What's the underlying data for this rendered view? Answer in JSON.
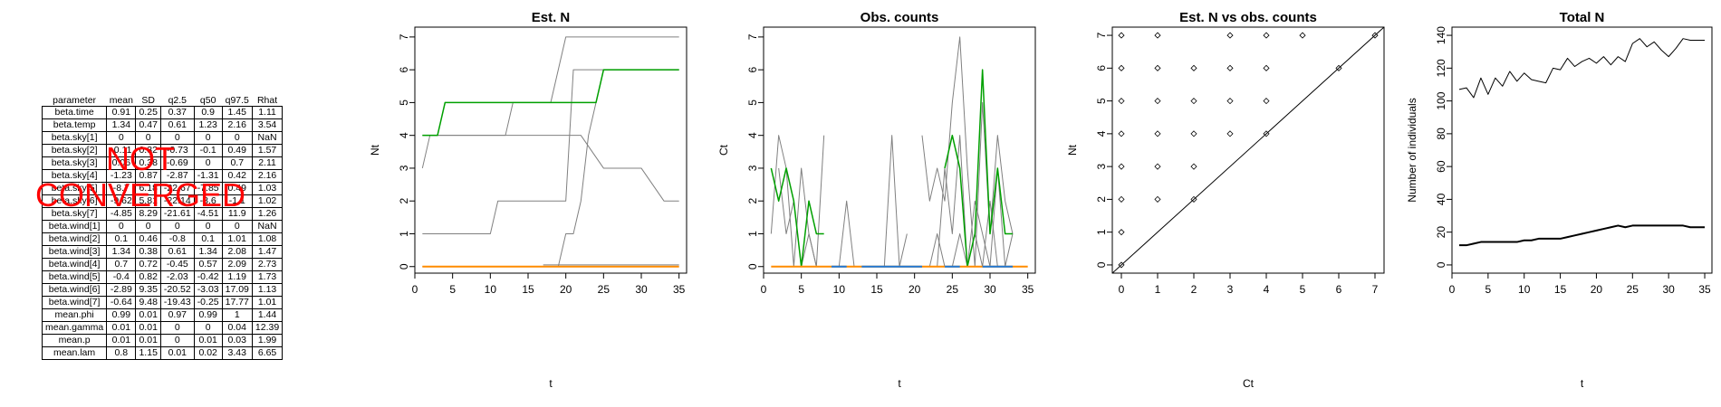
{
  "table": {
    "headers": [
      "parameter",
      "mean",
      "SD",
      "q2.5",
      "q50",
      "q97.5",
      "Rhat"
    ],
    "rows": [
      [
        "beta.time",
        "0.91",
        "0.25",
        "0.37",
        "0.9",
        "1.45",
        "1.11"
      ],
      [
        "beta.temp",
        "1.34",
        "0.47",
        "0.61",
        "1.23",
        "2.16",
        "3.54"
      ],
      [
        "beta.sky[1]",
        "0",
        "0",
        "0",
        "0",
        "0",
        "NaN"
      ],
      [
        "beta.sky[2]",
        "-0.11",
        "0.32",
        "-0.73",
        "-0.1",
        "0.49",
        "1.57"
      ],
      [
        "beta.sky[3]",
        "0.06",
        "0.38",
        "-0.69",
        "0",
        "0.7",
        "2.11"
      ],
      [
        "beta.sky[4]",
        "-1.23",
        "0.87",
        "-2.87",
        "-1.31",
        "0.42",
        "2.16"
      ],
      [
        "beta.sky[5]",
        "-8.7",
        "6.18",
        "-22.67",
        "-7.85",
        "0.49",
        "1.03"
      ],
      [
        "beta.sky[6]",
        "-9.62",
        "5.81",
        "-22.14",
        "-8.6",
        "-1.1",
        "1.02"
      ],
      [
        "beta.sky[7]",
        "-4.85",
        "8.29",
        "-21.61",
        "-4.51",
        "11.9",
        "1.26"
      ],
      [
        "beta.wind[1]",
        "0",
        "0",
        "0",
        "0",
        "0",
        "NaN"
      ],
      [
        "beta.wind[2]",
        "0.1",
        "0.46",
        "-0.8",
        "0.1",
        "1.01",
        "1.08"
      ],
      [
        "beta.wind[3]",
        "1.34",
        "0.38",
        "0.61",
        "1.34",
        "2.08",
        "1.47"
      ],
      [
        "beta.wind[4]",
        "0.7",
        "0.72",
        "-0.45",
        "0.57",
        "2.09",
        "2.73"
      ],
      [
        "beta.wind[5]",
        "-0.4",
        "0.82",
        "-2.03",
        "-0.42",
        "1.19",
        "1.73"
      ],
      [
        "beta.wind[6]",
        "-2.89",
        "9.35",
        "-20.52",
        "-3.03",
        "17.09",
        "1.13"
      ],
      [
        "beta.wind[7]",
        "-0.64",
        "9.48",
        "-19.43",
        "-0.25",
        "17.77",
        "1.01"
      ],
      [
        "mean.phi",
        "0.99",
        "0.01",
        "0.97",
        "0.99",
        "1",
        "1.44"
      ],
      [
        "mean.gamma",
        "0.01",
        "0.01",
        "0",
        "0",
        "0.04",
        "12.39"
      ],
      [
        "mean.p",
        "0.01",
        "0.01",
        "0",
        "0.01",
        "0.03",
        "1.99"
      ],
      [
        "mean.lam",
        "0.8",
        "1.15",
        "0.01",
        "0.02",
        "3.43",
        "6.65"
      ]
    ]
  },
  "stamp": {
    "line1": "NOT",
    "line2": "CONVERGED",
    "color": "#ff0000"
  },
  "chart_data": [
    {
      "type": "line",
      "title": "Est. N",
      "xlabel": "t",
      "ylabel": "Nt",
      "xlim": [
        0,
        36
      ],
      "ylim": [
        -0.2,
        7.3
      ],
      "xticks": [
        0,
        5,
        10,
        15,
        20,
        25,
        30,
        35
      ],
      "yticks": [
        0,
        1,
        2,
        3,
        4,
        5,
        6,
        7
      ],
      "series": [
        {
          "color": "#808080",
          "width": 1,
          "x": [
            1,
            2,
            10,
            12,
            13,
            18,
            19,
            20,
            22,
            35
          ],
          "y": [
            3,
            4,
            4,
            4,
            5,
            5,
            6,
            7,
            7,
            7
          ]
        },
        {
          "color": "#808080",
          "width": 1,
          "x": [
            1,
            10,
            11,
            20,
            21,
            35
          ],
          "y": [
            1,
            1,
            2,
            2,
            6,
            6
          ]
        },
        {
          "color": "#808080",
          "width": 1,
          "x": [
            1,
            15,
            17,
            18,
            19,
            20,
            21,
            22,
            25,
            30,
            33,
            35
          ],
          "y": [
            4,
            4,
            4,
            4,
            4,
            4,
            4,
            4,
            3,
            3,
            2,
            2
          ]
        },
        {
          "color": "#808080",
          "width": 1,
          "x": [
            1,
            17,
            19,
            20,
            21,
            22,
            23,
            25,
            26,
            35
          ],
          "y": [
            0,
            0,
            0,
            1,
            1,
            2,
            4,
            6,
            6,
            6
          ]
        },
        {
          "color": "#808080",
          "width": 1,
          "x": [
            17,
            35
          ],
          "y": [
            0.05,
            0.05
          ]
        },
        {
          "color": "#00a000",
          "width": 1.5,
          "x": [
            1,
            3,
            4,
            24,
            25,
            35
          ],
          "y": [
            4,
            4,
            5,
            5,
            6,
            6
          ]
        },
        {
          "color": "#ff8c00",
          "width": 2,
          "x": [
            1,
            35
          ],
          "y": [
            0,
            0
          ]
        }
      ]
    },
    {
      "type": "line",
      "title": "Obs. counts",
      "xlabel": "t",
      "ylabel": "Ct",
      "xlim": [
        0,
        36
      ],
      "ylim": [
        -0.2,
        7.3
      ],
      "xticks": [
        0,
        5,
        10,
        15,
        20,
        25,
        30,
        35
      ],
      "yticks": [
        0,
        1,
        2,
        3,
        4,
        5,
        6,
        7
      ],
      "series": [
        {
          "color": "#808080",
          "width": 1,
          "x": [
            1,
            2,
            3,
            4,
            5,
            6,
            7,
            8
          ],
          "y": [
            1,
            4,
            3,
            0,
            3,
            1,
            0,
            4
          ]
        },
        {
          "color": "#808080",
          "width": 1,
          "x": [
            2,
            3,
            4,
            5,
            6,
            7
          ],
          "y": [
            3,
            1,
            2,
            0,
            1,
            0
          ]
        },
        {
          "color": "#808080",
          "width": 1,
          "x": [
            10,
            11,
            12
          ],
          "y": [
            0,
            2,
            0
          ]
        },
        {
          "color": "#808080",
          "width": 1,
          "x": [
            15,
            16,
            17,
            18,
            19
          ],
          "y": [
            0,
            0,
            4,
            0,
            1
          ]
        },
        {
          "color": "#808080",
          "width": 1,
          "x": [
            21,
            22,
            23,
            24,
            25,
            26,
            27,
            28,
            29,
            30,
            31,
            32,
            33
          ],
          "y": [
            4,
            2,
            3,
            2,
            5,
            7,
            3,
            0,
            5,
            1,
            4,
            2,
            1
          ]
        },
        {
          "color": "#808080",
          "width": 1,
          "x": [
            22,
            23,
            24,
            25,
            26,
            27,
            28,
            29,
            30,
            31,
            32,
            33
          ],
          "y": [
            0,
            1,
            0,
            0,
            1,
            0,
            2,
            1,
            0,
            3,
            0,
            1
          ]
        },
        {
          "color": "#808080",
          "width": 1,
          "x": [
            23,
            24,
            25,
            26,
            27,
            28,
            29,
            30,
            31
          ],
          "y": [
            0,
            3,
            1,
            4,
            0,
            1,
            0,
            2,
            0
          ]
        },
        {
          "color": "#00a000",
          "width": 1.5,
          "x": [
            1,
            2,
            3,
            4,
            5,
            6,
            7,
            8
          ],
          "y": [
            3,
            2,
            3,
            2,
            0,
            2,
            1,
            1
          ]
        },
        {
          "color": "#00a000",
          "width": 1.5,
          "x": [
            24,
            25,
            26,
            27,
            28,
            29,
            30,
            31,
            32,
            33
          ],
          "y": [
            3,
            4,
            3,
            0,
            1,
            6,
            1,
            3,
            1,
            1
          ]
        },
        {
          "color": "#ff8c00",
          "width": 2,
          "x": [
            1,
            35
          ],
          "y": [
            0,
            0
          ]
        },
        {
          "color": "#1f77d4",
          "width": 2,
          "x": [
            9,
            11
          ],
          "y": [
            0,
            0
          ]
        },
        {
          "color": "#1f77d4",
          "width": 2,
          "x": [
            13,
            21
          ],
          "y": [
            0,
            0
          ]
        },
        {
          "color": "#1f77d4",
          "width": 2,
          "x": [
            24,
            26
          ],
          "y": [
            0,
            0
          ]
        },
        {
          "color": "#1f77d4",
          "width": 2,
          "x": [
            29,
            33
          ],
          "y": [
            0,
            0
          ]
        }
      ]
    },
    {
      "type": "scatter",
      "title": "Est. N vs obs. counts",
      "xlabel": "Ct",
      "ylabel": "Nt",
      "xlim": [
        -0.25,
        7.25
      ],
      "ylim": [
        -0.25,
        7.25
      ],
      "xticks": [
        0,
        1,
        2,
        3,
        4,
        5,
        6,
        7
      ],
      "yticks": [
        0,
        1,
        2,
        3,
        4,
        5,
        6,
        7
      ],
      "reference_line": {
        "x": [
          -0.25,
          7.25
        ],
        "y": [
          -0.25,
          7.25
        ]
      },
      "points": {
        "x": [
          0,
          0,
          0,
          0,
          0,
          0,
          0,
          0,
          1,
          1,
          1,
          1,
          1,
          1,
          2,
          2,
          2,
          2,
          2,
          3,
          3,
          3,
          3,
          4,
          4,
          4,
          4,
          5,
          6,
          7
        ],
        "y": [
          0,
          1,
          2,
          3,
          4,
          5,
          6,
          7,
          2,
          3,
          4,
          5,
          6,
          7,
          2,
          3,
          4,
          5,
          6,
          4,
          5,
          6,
          7,
          4,
          5,
          6,
          7,
          7,
          6,
          7
        ]
      }
    },
    {
      "type": "line",
      "title": "Total N",
      "xlabel": "t",
      "ylabel": "Number of individuals",
      "xlim": [
        0,
        36
      ],
      "ylim": [
        -5,
        145
      ],
      "xticks": [
        0,
        5,
        10,
        15,
        20,
        25,
        30,
        35
      ],
      "yticks": [
        0,
        20,
        40,
        60,
        80,
        100,
        120,
        140
      ],
      "series": [
        {
          "color": "#000000",
          "width": 1,
          "x": [
            1,
            2,
            3,
            4,
            5,
            6,
            7,
            8,
            9,
            10,
            11,
            12,
            13,
            14,
            15,
            16,
            17,
            18,
            19,
            20,
            21,
            22,
            23,
            24,
            25,
            26,
            27,
            28,
            29,
            30,
            31,
            32,
            33,
            34,
            35
          ],
          "y": [
            107,
            108,
            102,
            114,
            104,
            114,
            109,
            118,
            112,
            117,
            113,
            112,
            111,
            120,
            119,
            126,
            121,
            124,
            126,
            123,
            127,
            122,
            127,
            124,
            135,
            138,
            133,
            136,
            131,
            127,
            132,
            138,
            137,
            137,
            137
          ]
        },
        {
          "color": "#000000",
          "width": 2,
          "x": [
            1,
            2,
            3,
            4,
            5,
            6,
            7,
            8,
            9,
            10,
            11,
            12,
            13,
            14,
            15,
            16,
            17,
            18,
            19,
            20,
            21,
            22,
            23,
            24,
            25,
            26,
            27,
            28,
            29,
            30,
            31,
            32,
            33,
            34,
            35
          ],
          "y": [
            12,
            12,
            13,
            14,
            14,
            14,
            14,
            14,
            14,
            15,
            15,
            16,
            16,
            16,
            16,
            17,
            18,
            19,
            20,
            21,
            22,
            23,
            24,
            23,
            24,
            24,
            24,
            24,
            24,
            24,
            24,
            24,
            23,
            23,
            23
          ]
        }
      ]
    }
  ]
}
